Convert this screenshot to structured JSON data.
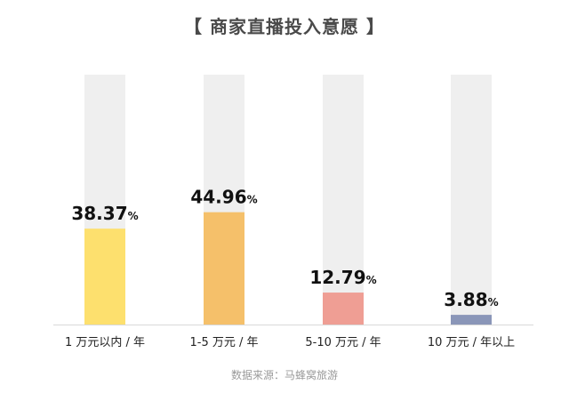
{
  "title": "【 商家直播投入意愿 】",
  "source": "数据来源：马蜂窝旅游",
  "chart_data": {
    "type": "bar",
    "title": "【 商家直播投入意愿 】",
    "categories": [
      "1 万元以内 / 年",
      "1-5 万元 / 年",
      "5-10 万元 / 年",
      "10 万元 / 年以上"
    ],
    "values": [
      38.37,
      44.96,
      12.79,
      3.88
    ],
    "value_labels": [
      "38.37",
      "44.96",
      "12.79",
      "3.88"
    ],
    "unit_suffix": "%",
    "ylim": [
      0,
      100
    ],
    "grid": false,
    "colors": [
      "#fde06e",
      "#f5c06a",
      "#ef9e94",
      "#8a96b8"
    ],
    "track_color": "#efefef",
    "axis_color": "#d8d8d8"
  }
}
